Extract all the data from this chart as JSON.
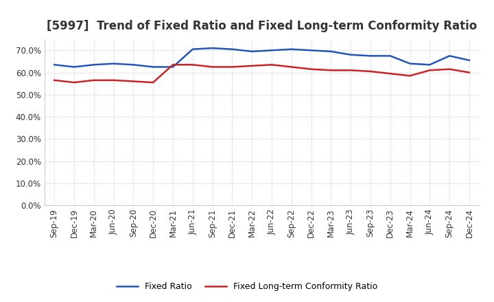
{
  "title": "[5997]  Trend of Fixed Ratio and Fixed Long-term Conformity Ratio",
  "x_labels": [
    "Sep-19",
    "Dec-19",
    "Mar-20",
    "Jun-20",
    "Sep-20",
    "Dec-20",
    "Mar-21",
    "Jun-21",
    "Sep-21",
    "Dec-21",
    "Mar-22",
    "Jun-22",
    "Sep-22",
    "Dec-22",
    "Mar-23",
    "Jun-23",
    "Sep-23",
    "Dec-23",
    "Mar-24",
    "Jun-24",
    "Sep-24",
    "Dec-24"
  ],
  "fixed_ratio": [
    63.5,
    62.5,
    63.5,
    64.0,
    63.5,
    62.5,
    62.5,
    70.5,
    71.0,
    70.5,
    69.5,
    70.0,
    70.5,
    70.0,
    69.5,
    68.0,
    67.5,
    67.5,
    64.0,
    63.5,
    67.5,
    65.5
  ],
  "fixed_lt_ratio": [
    56.5,
    55.5,
    56.5,
    56.5,
    56.0,
    55.5,
    63.5,
    63.5,
    62.5,
    62.5,
    63.0,
    63.5,
    62.5,
    61.5,
    61.0,
    61.0,
    60.5,
    59.5,
    58.5,
    61.0,
    61.5,
    60.0
  ],
  "line_color_blue": "#2255bb",
  "line_color_red": "#cc2222",
  "ylim_min": 0,
  "ylim_max": 75,
  "ytick_max": 70,
  "ytick_step": 10,
  "background_color": "#ffffff",
  "grid_color": "#bbbbbb",
  "legend_fixed": "Fixed Ratio",
  "legend_lt": "Fixed Long-term Conformity Ratio",
  "title_fontsize": 12,
  "axis_fontsize": 8.5,
  "legend_fontsize": 9,
  "line_width": 1.8
}
